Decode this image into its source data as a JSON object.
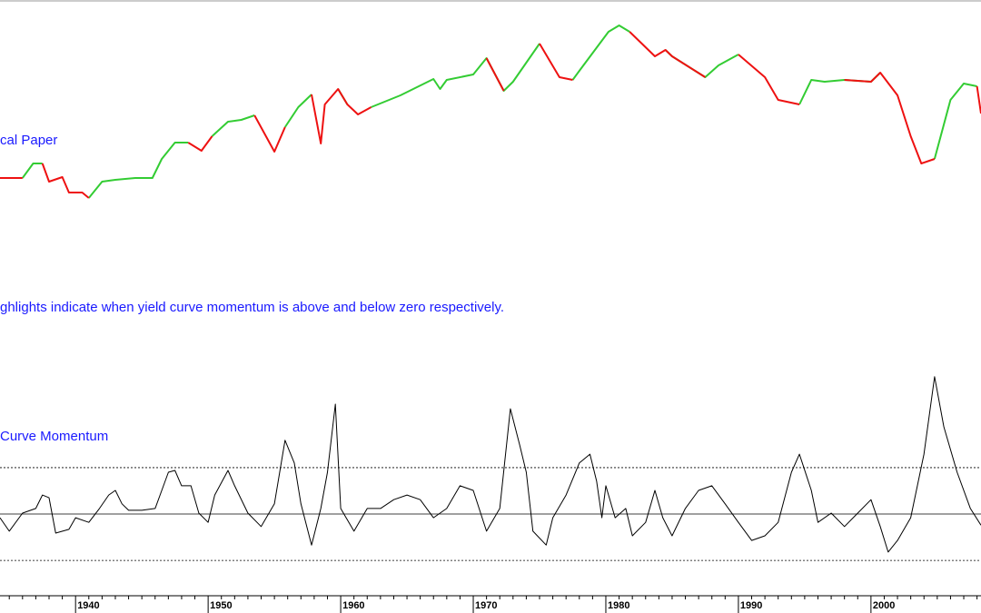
{
  "chart_data": [
    {
      "type": "line",
      "annotations": [
        "cal Paper",
        "ghlights indicate when yield curve momentum is above and below zero respectively."
      ],
      "x": [
        1934.3,
        1936,
        1936.8,
        1937.5,
        1938,
        1939,
        1939.5,
        1940.5,
        1941,
        1942,
        1943,
        1944.5,
        1945.8,
        1946.5,
        1947.5,
        1948.5,
        1949.5,
        1950.3,
        1951.5,
        1952.5,
        1953.5,
        1955,
        1955.8,
        1956.8,
        1957.8,
        1958.5,
        1958.8,
        1959.8,
        1960.5,
        1961.3,
        1962.3,
        1964.5,
        1967,
        1967.5,
        1968,
        1970,
        1971,
        1972.3,
        1973,
        1975,
        1976.5,
        1977.5,
        1978,
        1980.2,
        1981,
        1981.8,
        1983.7,
        1984.5,
        1985,
        1987.5,
        1988.5,
        1990,
        1992,
        1993,
        1994.6,
        1995.5,
        1996.5,
        1998,
        2000,
        2000.7,
        2002,
        2003,
        2003.8,
        2004.8,
        2006,
        2007,
        2008,
        2008.3
      ],
      "series": [
        {
          "color": "#33cc33",
          "values": [
            null,
            54,
            70,
            70,
            null,
            null,
            null,
            null,
            32,
            50,
            52,
            54,
            54,
            75,
            93,
            93,
            null,
            100,
            116,
            118,
            123,
            null,
            110,
            132,
            146,
            null,
            null,
            152,
            135,
            null,
            132,
            145,
            163,
            152,
            162,
            168,
            186,
            150,
            160,
            202,
            null,
            162,
            172,
            215,
            222,
            215,
            null,
            195,
            188,
            165,
            178,
            190,
            null,
            null,
            135,
            162,
            160,
            162,
            160,
            170,
            null,
            null,
            null,
            75,
            140,
            158,
            155,
            null
          ]
        },
        {
          "color": "#ee1111",
          "values": [
            54,
            54,
            null,
            70,
            50,
            55,
            38,
            38,
            32,
            null,
            null,
            null,
            null,
            null,
            null,
            93,
            84,
            100,
            null,
            null,
            123,
            83,
            110,
            null,
            146,
            92,
            135,
            152,
            135,
            124,
            132,
            null,
            null,
            null,
            null,
            null,
            186,
            150,
            null,
            202,
            165,
            162,
            null,
            null,
            null,
            215,
            188,
            195,
            188,
            165,
            null,
            190,
            165,
            140,
            135,
            null,
            null,
            162,
            160,
            170,
            145,
            100,
            70,
            75,
            null,
            null,
            155,
            125
          ]
        }
      ],
      "xlim": [
        1934.3,
        2008.3
      ],
      "ylim": [
        0,
        250
      ]
    },
    {
      "type": "line",
      "annotations": [
        "Curve Momentum"
      ],
      "x": [
        1934.3,
        1935,
        1936,
        1937,
        1937.5,
        1938,
        1938.5,
        1939.5,
        1940,
        1941,
        1941.8,
        1942.5,
        1943,
        1943.5,
        1944,
        1945,
        1946,
        1946.5,
        1947,
        1947.5,
        1948,
        1948.7,
        1949.3,
        1950,
        1950.5,
        1951.5,
        1952,
        1953,
        1954,
        1955,
        1955.8,
        1956.5,
        1957,
        1957.8,
        1958.5,
        1959,
        1959.6,
        1960,
        1961,
        1962,
        1963,
        1964,
        1965,
        1966,
        1967,
        1968,
        1969,
        1970,
        1971,
        1972,
        1972.8,
        1973.5,
        1974,
        1974.5,
        1975.5,
        1976,
        1977,
        1978,
        1978.8,
        1979.3,
        1979.7,
        1980,
        1980.7,
        1981.5,
        1982,
        1983,
        1983.7,
        1984.3,
        1985,
        1986,
        1987,
        1988,
        1989,
        1990,
        1991,
        1992,
        1993,
        1994,
        1994.6,
        1995.5,
        1996,
        1997,
        1998,
        1999,
        2000,
        2000.7,
        2001.3,
        2002,
        2003,
        2004,
        2004.8,
        2005.5,
        2006.5,
        2007.5,
        2008.3
      ],
      "series": [
        {
          "color": "#000000",
          "values": [
            -0.08,
            -0.37,
            0.02,
            0.12,
            0.41,
            0.35,
            -0.41,
            -0.33,
            -0.08,
            -0.18,
            0.12,
            0.41,
            0.51,
            0.22,
            0.08,
            0.08,
            0.12,
            0.51,
            0.9,
            0.94,
            0.61,
            0.61,
            0.02,
            -0.18,
            0.41,
            0.94,
            0.61,
            0.02,
            -0.27,
            0.22,
            1.59,
            1.1,
            0.22,
            -0.67,
            0.12,
            0.9,
            2.37,
            0.12,
            -0.37,
            0.12,
            0.12,
            0.31,
            0.41,
            0.31,
            -0.08,
            0.12,
            0.61,
            0.51,
            -0.37,
            0.12,
            2.27,
            1.49,
            0.9,
            -0.37,
            -0.67,
            -0.08,
            0.41,
            1.1,
            1.29,
            0.71,
            -0.08,
            0.61,
            -0.08,
            0.12,
            -0.47,
            -0.18,
            0.51,
            -0.08,
            -0.47,
            0.12,
            0.51,
            0.61,
            0.22,
            -0.18,
            -0.57,
            -0.47,
            -0.18,
            0.9,
            1.29,
            0.51,
            -0.18,
            0.02,
            -0.27,
            0.02,
            0.31,
            -0.27,
            -0.82,
            -0.57,
            -0.08,
            1.29,
            2.96,
            1.88,
            0.9,
            0.12,
            -0.24
          ]
        }
      ],
      "hlines": [
        {
          "value": 1,
          "dashed": true
        },
        {
          "value": 0,
          "dashed": false
        },
        {
          "value": -1,
          "dashed": true
        }
      ],
      "xlim": [
        1934.3,
        2008.3
      ],
      "ylim": [
        -1.84,
        3.25
      ],
      "xticks": [
        1940,
        1950,
        1960,
        1970,
        1980,
        1990,
        2000
      ],
      "xminorticks": [
        1935,
        1936,
        1937,
        1938,
        1939,
        1941,
        1942,
        1943,
        1944,
        1945,
        1946,
        1947,
        1948,
        1949,
        1951,
        1952,
        1953,
        1954,
        1955,
        1956,
        1957,
        1958,
        1959,
        1961,
        1962,
        1963,
        1964,
        1965,
        1966,
        1967,
        1968,
        1969,
        1971,
        1972,
        1973,
        1974,
        1975,
        1976,
        1977,
        1978,
        1979,
        1981,
        1982,
        1983,
        1984,
        1985,
        1986,
        1987,
        1988,
        1989,
        1991,
        1992,
        1993,
        1994,
        1995,
        1996,
        1997,
        1998,
        1999,
        2001,
        2002,
        2003,
        2004,
        2005,
        2006,
        2007,
        2008
      ]
    }
  ]
}
